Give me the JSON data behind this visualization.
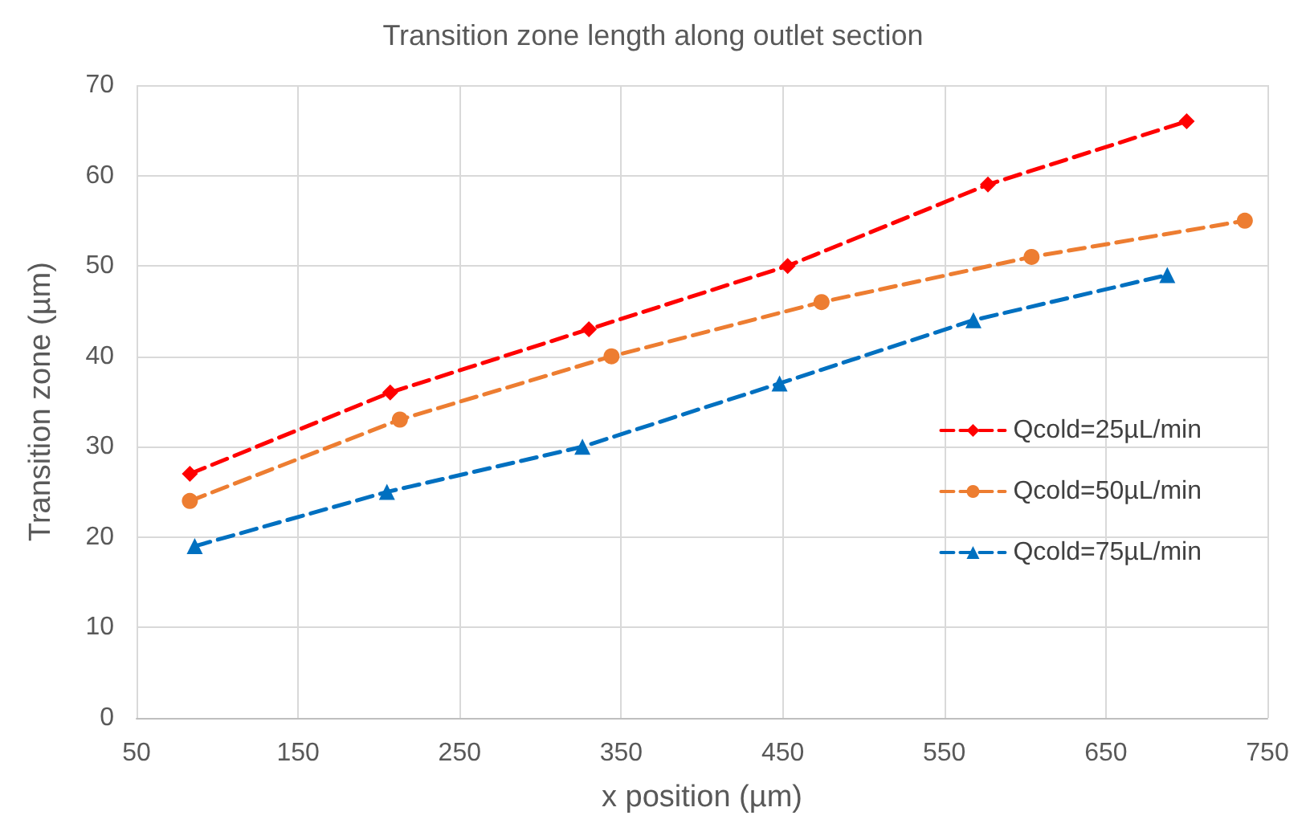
{
  "chart_data": {
    "type": "line",
    "title": "Transition zone length along outlet section",
    "xlabel": "x position (µm)",
    "ylabel": "Transition zone (µm)",
    "xlim": [
      50,
      750
    ],
    "xticks": [
      50,
      150,
      250,
      350,
      450,
      550,
      650,
      750
    ],
    "ylim": [
      0,
      70
    ],
    "yticks": [
      0,
      10,
      20,
      30,
      40,
      50,
      60,
      70
    ],
    "grid": true,
    "legend": "right",
    "line_style": "dashed",
    "series": [
      {
        "name": "Qcold=25µL/min",
        "color": "#ff0000",
        "marker": "diamond",
        "x": [
          83,
          207,
          330,
          453,
          577,
          700
        ],
        "values": [
          27,
          36,
          43,
          50,
          59,
          66
        ]
      },
      {
        "name": "Qcold=50µL/min",
        "color": "#ed7d31",
        "marker": "circle",
        "x": [
          83,
          213,
          344,
          474,
          604,
          736
        ],
        "values": [
          24,
          33,
          40,
          46,
          51,
          55
        ]
      },
      {
        "name": "Qcold=75µL/min",
        "color": "#0070c0",
        "marker": "triangle",
        "x": [
          86,
          205,
          326,
          448,
          568,
          688
        ],
        "values": [
          19,
          25,
          30,
          37,
          44,
          49
        ]
      }
    ]
  }
}
